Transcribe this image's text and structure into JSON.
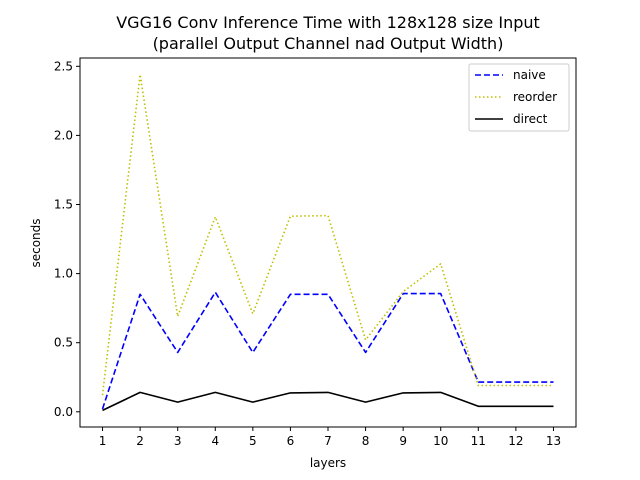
{
  "chart_data": {
    "type": "line",
    "title_line1": "VGG16 Conv Inference Time with 128x128 size Input",
    "title_line2": "(parallel Output Channel nad Output Width)",
    "xlabel": "layers",
    "ylabel": "seconds",
    "x": [
      1,
      2,
      3,
      4,
      5,
      6,
      7,
      8,
      9,
      10,
      11,
      12,
      13
    ],
    "xlim": [
      0.4,
      13.6
    ],
    "ylim": [
      -0.11,
      2.56
    ],
    "yticks": [
      0.0,
      0.5,
      1.0,
      1.5,
      2.0,
      2.5
    ],
    "ytick_labels": [
      "0.0",
      "0.5",
      "1.0",
      "1.5",
      "2.0",
      "2.5"
    ],
    "legend_position": "top-right",
    "series": [
      {
        "name": "naive",
        "color": "#0000ff",
        "style": "dashed",
        "values": [
          0.02,
          0.85,
          0.43,
          0.865,
          0.43,
          0.85,
          0.85,
          0.43,
          0.855,
          0.855,
          0.215,
          0.215,
          0.215
        ]
      },
      {
        "name": "reorder",
        "color": "#bfbf00",
        "style": "dotted",
        "values": [
          0.12,
          2.44,
          0.69,
          1.41,
          0.71,
          1.415,
          1.42,
          0.52,
          0.87,
          1.07,
          0.19,
          0.19,
          0.19
        ]
      },
      {
        "name": "direct",
        "color": "#000000",
        "style": "solid",
        "values": [
          0.01,
          0.14,
          0.07,
          0.14,
          0.07,
          0.137,
          0.14,
          0.07,
          0.137,
          0.14,
          0.04,
          0.04,
          0.04
        ]
      }
    ]
  }
}
